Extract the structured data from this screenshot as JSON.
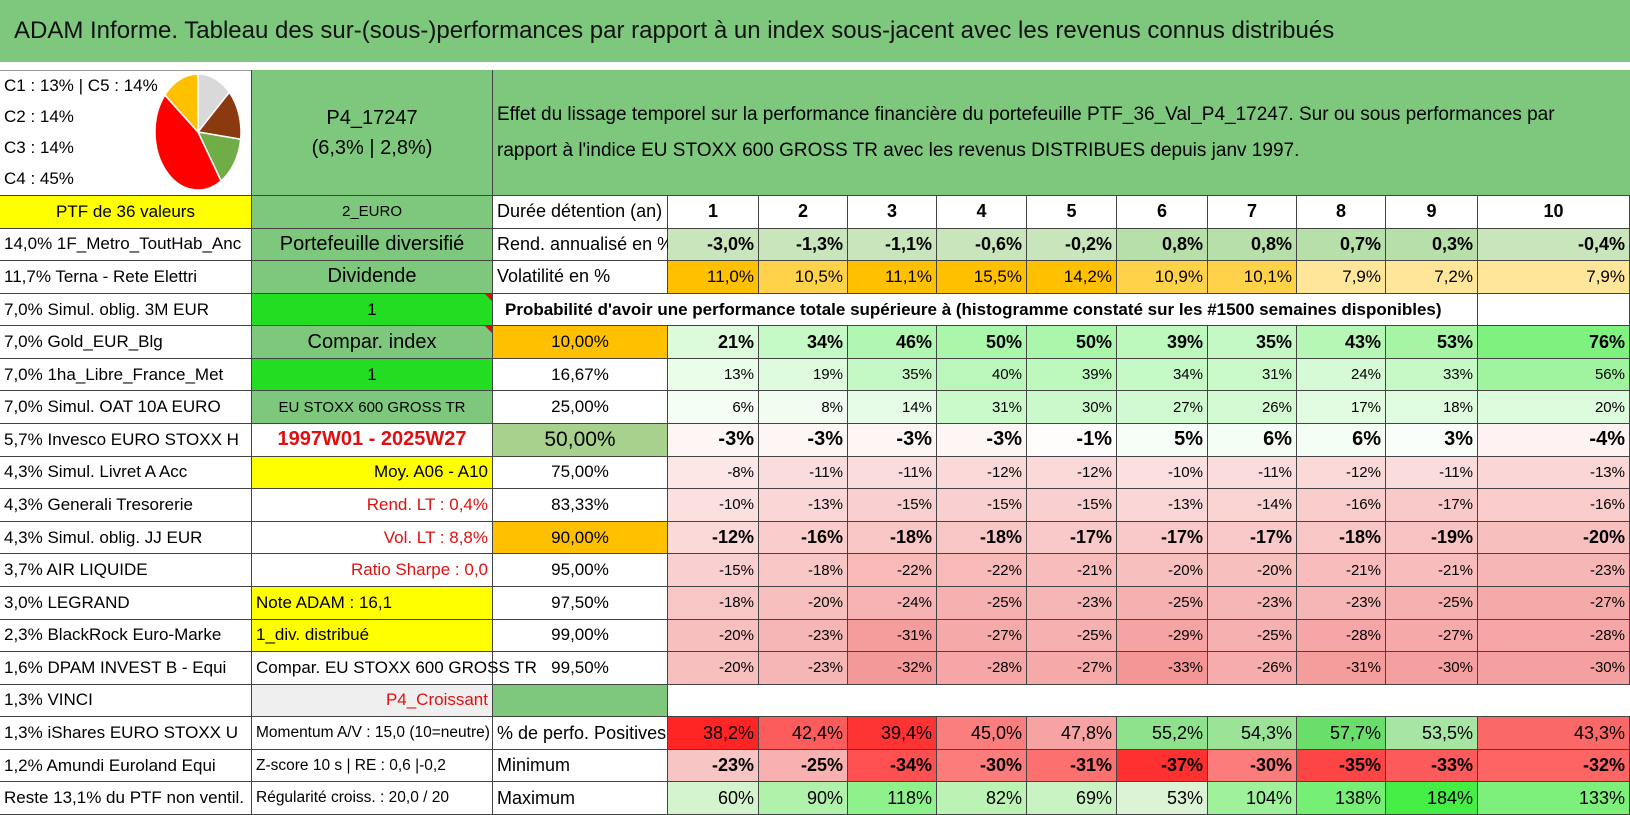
{
  "title": "ADAM Informe. Tableau des sur-(sous-)performances par rapport à un index sous-jacent avec les revenus connus distribués",
  "pie": {
    "legend": [
      "C1 : 13% | C5 : 14%",
      "C2 : 14%",
      "C3 : 14%",
      "C4 : 45%"
    ],
    "slices": [
      {
        "name": "C1",
        "value": 13,
        "color": "#d9d9d9"
      },
      {
        "name": "C2",
        "value": 14,
        "color": "#8b3a0f"
      },
      {
        "name": "C3",
        "value": 14,
        "color": "#70ad47"
      },
      {
        "name": "C4",
        "value": 45,
        "color": "#ff0000"
      },
      {
        "name": "C5",
        "value": 14,
        "color": "#ffc000"
      }
    ]
  },
  "portfolio": {
    "code": "P4_17247",
    "subtitle": "(6,3% | 2,8%)"
  },
  "description": "Effet du lissage temporel sur la performance financière du portefeuille PTF_36_Val_P4_17247. Sur ou sous performances par rapport à l'indice EU STOXX 600 GROSS TR avec les revenus DISTRIBUES depuis janv 1997.",
  "left_header": "PTF de 36 valeurs",
  "holdings": [
    "14,0% 1F_Metro_ToutHab_Anc",
    "11,7% Terna - Rete Elettri",
    "7,0% Simul. oblig. 3M EUR",
    "7,0% Gold_EUR_Blg",
    "7,0% 1ha_Libre_France_Met",
    "7,0% Simul. OAT 10A EURO",
    "5,7% Invesco EURO STOXX H",
    "4,3% Simul. Livret A Acc",
    "4,3% Generali Tresorerie",
    "4,3% Simul. oblig. JJ EUR",
    "3,7% AIR LIQUIDE",
    "3,0% LEGRAND",
    "2,3% BlackRock Euro-Marke",
    "1,6% DPAM INVEST B - Equi",
    "1,3% VINCI",
    "1,3% iShares EURO STOXX U",
    "1,2% Amundi Euroland Equi",
    "Reste 13,1% du PTF non ventil."
  ],
  "params": {
    "currency": "2_EURO",
    "type": "Portefeuille diversifié",
    "strategy": "Dividende",
    "input1": "1",
    "compar_index": "Compar. index",
    "input2": "1",
    "index_name": "EU STOXX 600 GROSS TR",
    "period": "1997W01 - 2025W27",
    "moy": "Moy. A06 - A10",
    "rend_lt": "Rend. LT : 0,4%",
    "vol_lt": "Vol. LT : 8,8%",
    "sharpe": "Ratio Sharpe : 0,0",
    "note": "Note ADAM : 16,1",
    "div": "1_div. distribué",
    "compar_full": "Compar. EU STOXX 600 GROSS TR",
    "profile": "P4_Croissant",
    "momentum": "Momentum A/V : 15,0 (10=neutre)",
    "zscore": "Z-score 10 s | RE : 0,6 |-0,2",
    "regularite": "Régularité croiss. : 20,0 / 20"
  },
  "labels": {
    "duree": "Durée détention (an)",
    "rend": "Rend. annualisé en %",
    "vol": "Volatilité en %",
    "proba": "Probabilité d'avoir une performance totale supérieure à (histogramme constaté sur les #1500 semaines disponibles)",
    "pos": "% de perfo. Positives",
    "min": "Minimum",
    "max": "Maximum"
  },
  "years": [
    "1",
    "2",
    "3",
    "4",
    "5",
    "6",
    "7",
    "8",
    "9",
    "10"
  ],
  "rend": [
    "-3,0%",
    "-1,3%",
    "-1,1%",
    "-0,6%",
    "-0,2%",
    "0,8%",
    "0,8%",
    "0,7%",
    "0,3%",
    "-0,4%"
  ],
  "vol": [
    "11,0%",
    "10,5%",
    "11,1%",
    "15,5%",
    "14,2%",
    "10,9%",
    "10,1%",
    "7,9%",
    "7,2%",
    "7,9%"
  ],
  "quantiles": [
    {
      "p": "10,00%",
      "v": [
        "21%",
        "34%",
        "46%",
        "50%",
        "50%",
        "39%",
        "35%",
        "43%",
        "53%",
        "76%"
      ]
    },
    {
      "p": "16,67%",
      "v": [
        "13%",
        "19%",
        "35%",
        "40%",
        "39%",
        "34%",
        "31%",
        "24%",
        "33%",
        "56%"
      ]
    },
    {
      "p": "25,00%",
      "v": [
        "6%",
        "8%",
        "14%",
        "31%",
        "30%",
        "27%",
        "26%",
        "17%",
        "18%",
        "20%"
      ]
    },
    {
      "p": "50,00%",
      "v": [
        "-3%",
        "-3%",
        "-3%",
        "-3%",
        "-1%",
        "5%",
        "6%",
        "6%",
        "3%",
        "-4%"
      ]
    },
    {
      "p": "75,00%",
      "v": [
        "-8%",
        "-11%",
        "-11%",
        "-12%",
        "-12%",
        "-10%",
        "-11%",
        "-12%",
        "-11%",
        "-13%"
      ]
    },
    {
      "p": "83,33%",
      "v": [
        "-10%",
        "-13%",
        "-15%",
        "-15%",
        "-15%",
        "-13%",
        "-14%",
        "-16%",
        "-17%",
        "-16%"
      ]
    },
    {
      "p": "90,00%",
      "v": [
        "-12%",
        "-16%",
        "-18%",
        "-18%",
        "-17%",
        "-17%",
        "-17%",
        "-18%",
        "-19%",
        "-20%"
      ]
    },
    {
      "p": "95,00%",
      "v": [
        "-15%",
        "-18%",
        "-22%",
        "-22%",
        "-21%",
        "-20%",
        "-20%",
        "-21%",
        "-21%",
        "-23%"
      ]
    },
    {
      "p": "97,50%",
      "v": [
        "-18%",
        "-20%",
        "-24%",
        "-25%",
        "-23%",
        "-25%",
        "-23%",
        "-23%",
        "-25%",
        "-27%"
      ]
    },
    {
      "p": "99,00%",
      "v": [
        "-20%",
        "-23%",
        "-31%",
        "-27%",
        "-25%",
        "-29%",
        "-25%",
        "-28%",
        "-27%",
        "-28%"
      ]
    },
    {
      "p": "99,50%",
      "v": [
        "-20%",
        "-23%",
        "-32%",
        "-28%",
        "-27%",
        "-33%",
        "-26%",
        "-31%",
        "-30%",
        "-30%"
      ]
    }
  ],
  "pos": [
    "38,2%",
    "42,4%",
    "39,4%",
    "45,0%",
    "47,8%",
    "55,2%",
    "54,3%",
    "57,7%",
    "53,5%",
    "43,3%"
  ],
  "min": [
    "-23%",
    "-25%",
    "-34%",
    "-30%",
    "-31%",
    "-37%",
    "-30%",
    "-35%",
    "-33%",
    "-32%"
  ],
  "max": [
    "60%",
    "90%",
    "118%",
    "82%",
    "69%",
    "53%",
    "104%",
    "138%",
    "184%",
    "133%"
  ],
  "colors": {
    "title_green": "#7dc87d",
    "yellow": "#ffff00",
    "bright_green": "#22dd22",
    "orange": "#ffc000",
    "red_text": "#e01010"
  }
}
